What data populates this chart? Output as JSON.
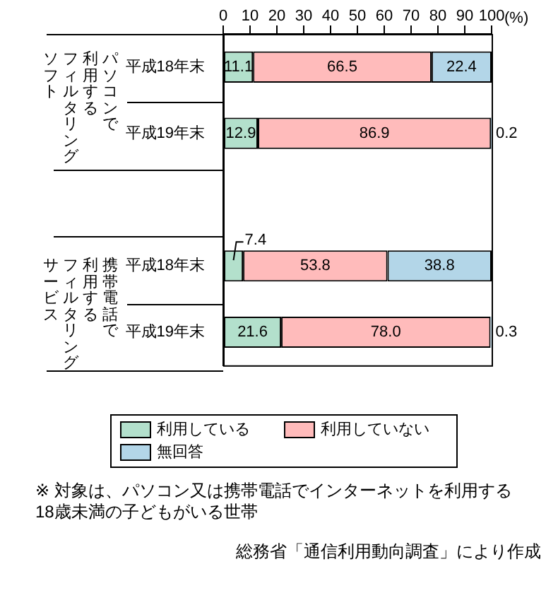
{
  "chart_data": {
    "type": "bar",
    "orientation": "horizontal",
    "stacked": true,
    "categories": [
      "平成18年末",
      "平成19年末",
      null,
      "平成18年末",
      "平成19年末"
    ],
    "series": [
      {
        "name": "利用している",
        "color": "#b3e0cc",
        "values": [
          11.1,
          12.9,
          null,
          7.4,
          21.6
        ],
        "value_labels": [
          "11.1",
          "12.9",
          null,
          "7.4",
          "21.6"
        ]
      },
      {
        "name": "利用していない",
        "color": "#ffbbbb",
        "values": [
          66.5,
          86.9,
          null,
          53.8,
          78.0
        ],
        "value_labels": [
          "66.5",
          "86.9",
          null,
          "53.8",
          "78.0"
        ]
      },
      {
        "name": "無回答",
        "color": "#b3d6e8",
        "values": [
          22.4,
          0.2,
          null,
          38.8,
          0.3
        ],
        "value_labels": [
          "22.4",
          "0.2",
          null,
          "38.8",
          "0.3"
        ]
      }
    ],
    "xlim": [
      0,
      100
    ],
    "xticks": [
      0,
      10,
      20,
      30,
      40,
      50,
      60,
      70,
      80,
      90,
      100
    ],
    "xlabel": "(%)",
    "grid": false,
    "legend": "bottom",
    "annotations": [
      "パソコンで",
      "利用する",
      "フィルタリング",
      "ソフト",
      "携帯電話で",
      "利用する",
      "フィルタリング",
      "サービス",
      "※ 対象は、パソコン又は携帯電話でインターネットを利用する\n18歳未満の子どもがいる世帯",
      "総務省「通信利用動向調査」により作成"
    ]
  }
}
